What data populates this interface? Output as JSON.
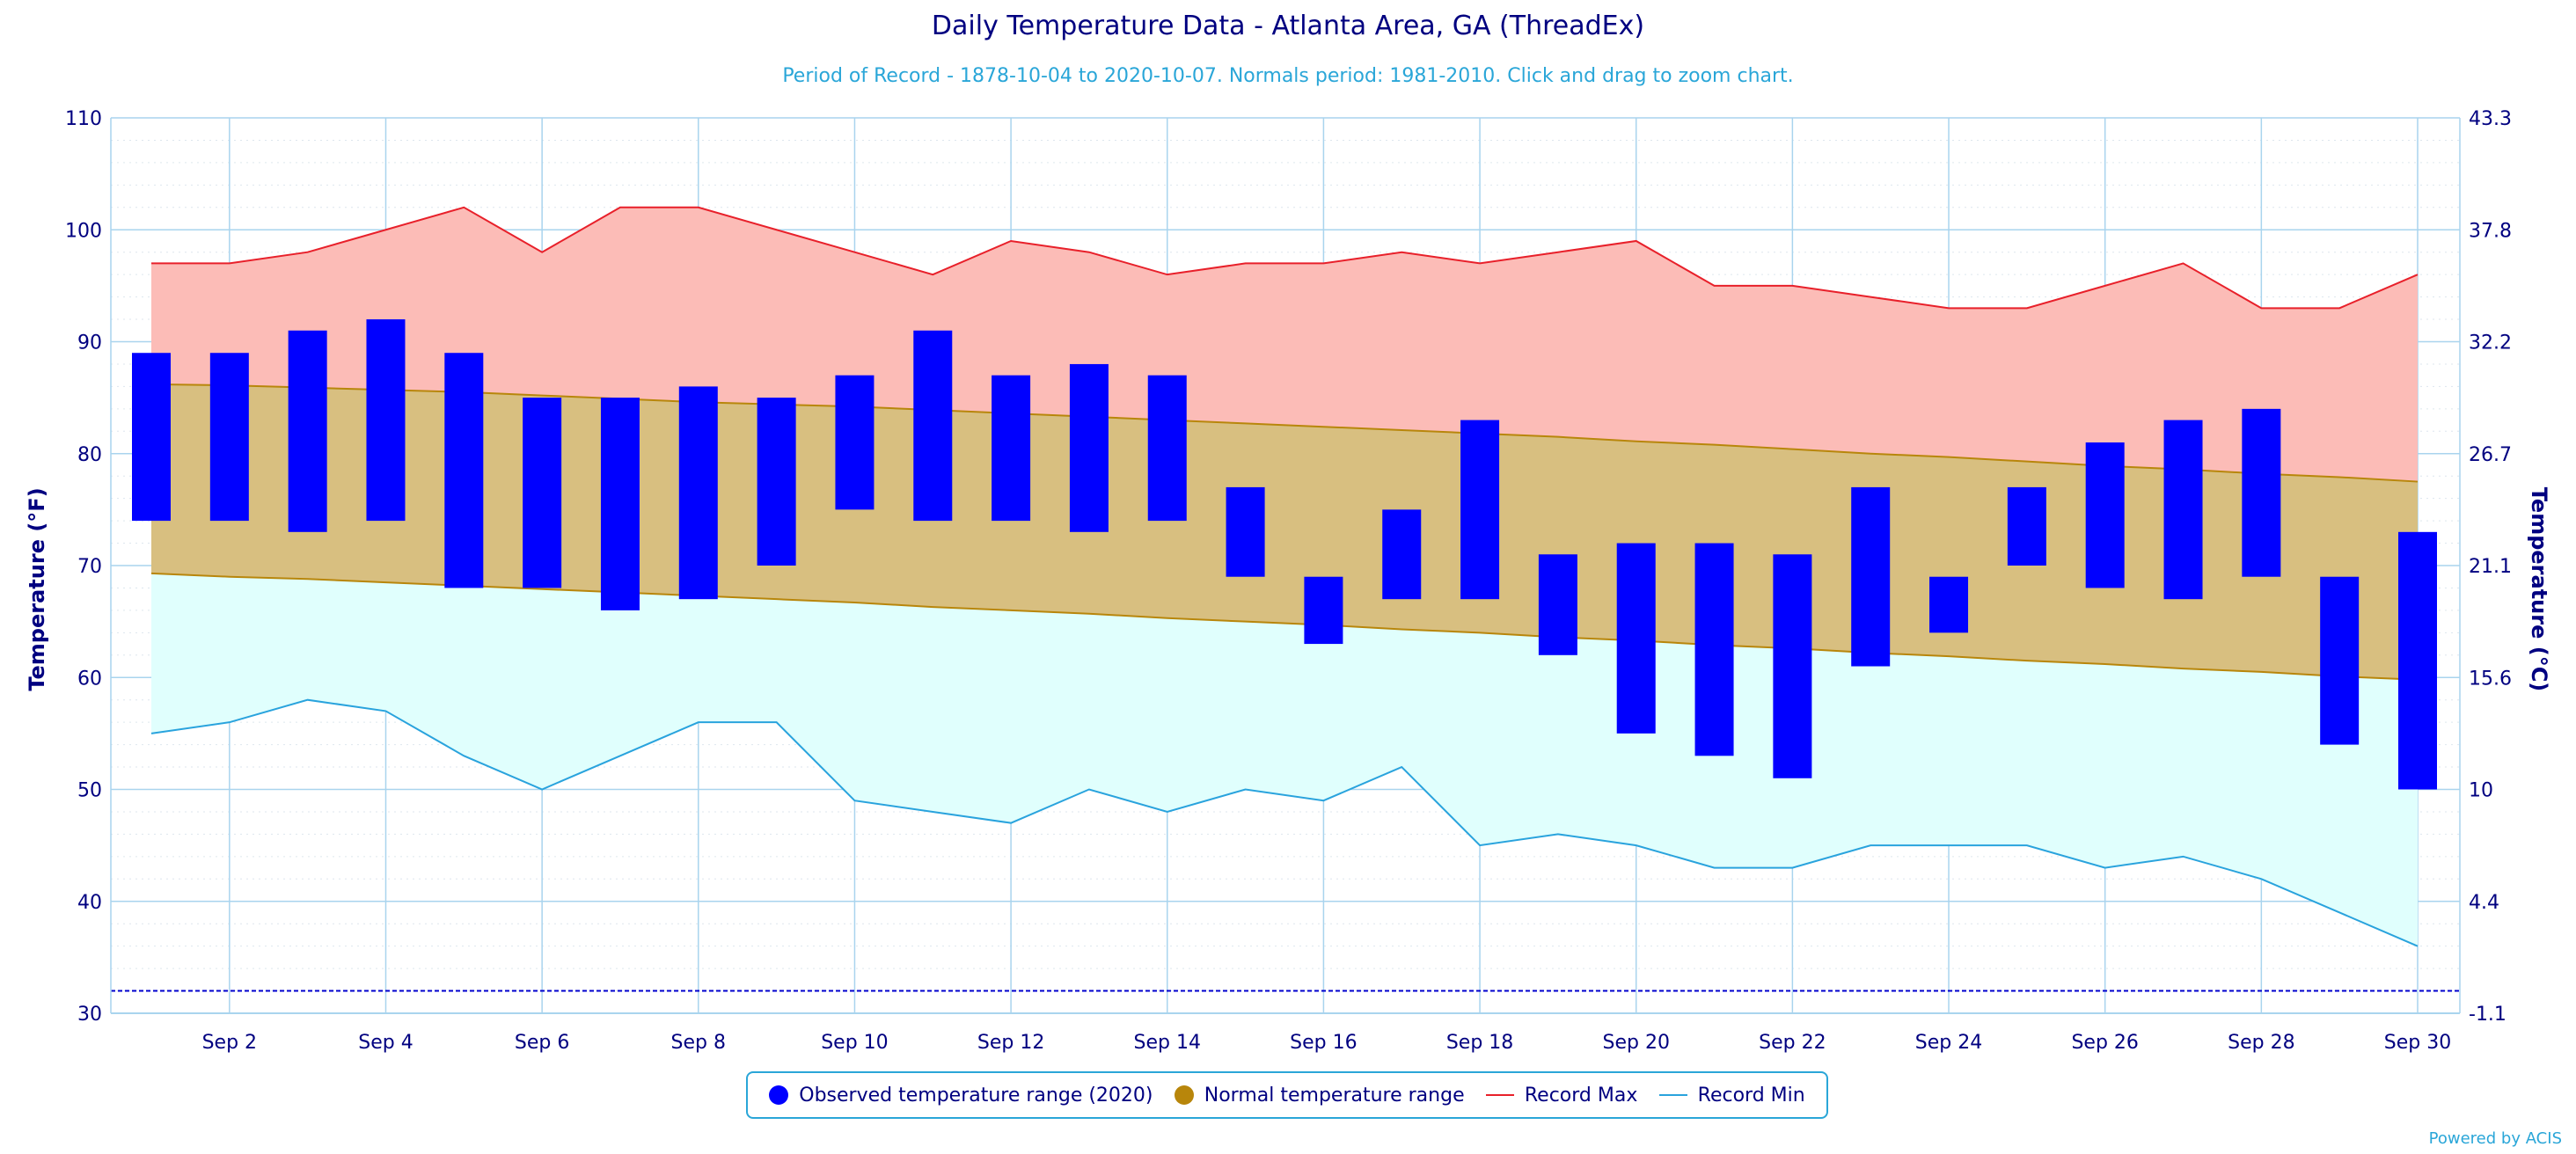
{
  "title": "Daily Temperature Data - Atlanta Area, GA (ThreadEx)",
  "subtitle": "Period of Record - 1878-10-04 to 2020-10-07. Normals period: 1981-2010. Click and drag to zoom chart.",
  "credit": "Powered by ACIS",
  "colors": {
    "observed": "#0000ff",
    "normal_fill": "#d8bf80",
    "normal_line": "#b8860b",
    "record_max_fill": "#fcbcb7",
    "record_max_line": "#e8202a",
    "record_min_fill": "#e0fffd",
    "record_min_line": "#29a3dd",
    "axis_text": "#000080",
    "grid": "#a9d4ee",
    "freeze_line": "#0000cd"
  },
  "legend": [
    {
      "label": "Observed temperature range (2020)",
      "type": "dot",
      "color": "#0000ff"
    },
    {
      "label": "Normal temperature range",
      "type": "dot",
      "color": "#b8860b"
    },
    {
      "label": "Record Max",
      "type": "line",
      "color": "#e8202a"
    },
    {
      "label": "Record Min",
      "type": "line",
      "color": "#29a3dd"
    }
  ],
  "chart_data": {
    "type": "bar",
    "ylabel": "Temperature (°F)",
    "ylabel_right": "Temperature (°C)",
    "ylim": [
      30,
      110
    ],
    "yticks": [
      30,
      40,
      50,
      60,
      70,
      80,
      90,
      100,
      110
    ],
    "yticks_right": [
      "-1.1",
      "4.4",
      "10",
      "15.6",
      "21.1",
      "26.7",
      "32.2",
      "37.8",
      "43.3"
    ],
    "x_tick_labels": [
      "Sep 2",
      "Sep 4",
      "Sep 6",
      "Sep 8",
      "Sep 10",
      "Sep 12",
      "Sep 14",
      "Sep 16",
      "Sep 18",
      "Sep 20",
      "Sep 22",
      "Sep 24",
      "Sep 26",
      "Sep 28",
      "Sep 30"
    ],
    "days": [
      1,
      2,
      3,
      4,
      5,
      6,
      7,
      8,
      9,
      10,
      11,
      12,
      13,
      14,
      15,
      16,
      17,
      18,
      19,
      20,
      21,
      22,
      23,
      24,
      25,
      26,
      27,
      28,
      29,
      30
    ],
    "observed_low": [
      74,
      74,
      73,
      74,
      68,
      68,
      66,
      67,
      70,
      75,
      74,
      74,
      73,
      74,
      69,
      63,
      67,
      67,
      62,
      55,
      53,
      51,
      61,
      64,
      70,
      68,
      67,
      69,
      54,
      50
    ],
    "observed_high": [
      89,
      89,
      91,
      92,
      89,
      85,
      85,
      86,
      85,
      87,
      91,
      87,
      88,
      87,
      77,
      69,
      75,
      83,
      71,
      72,
      72,
      71,
      77,
      69,
      77,
      81,
      83,
      84,
      69,
      73
    ],
    "normal_high": [
      86.2,
      86.1,
      85.9,
      85.7,
      85.5,
      85.2,
      84.9,
      84.6,
      84.4,
      84.2,
      83.9,
      83.6,
      83.3,
      83.0,
      82.7,
      82.4,
      82.1,
      81.8,
      81.5,
      81.1,
      80.8,
      80.4,
      80.0,
      79.7,
      79.3,
      78.9,
      78.6,
      78.2,
      77.9,
      77.5
    ],
    "normal_low": [
      69.3,
      69.0,
      68.8,
      68.5,
      68.2,
      67.9,
      67.6,
      67.3,
      67.0,
      66.7,
      66.3,
      66.0,
      65.7,
      65.3,
      65.0,
      64.7,
      64.3,
      64.0,
      63.6,
      63.3,
      62.9,
      62.6,
      62.2,
      61.9,
      61.5,
      61.2,
      60.8,
      60.5,
      60.1,
      59.8
    ],
    "record_max": [
      97,
      97,
      98,
      100,
      102,
      98,
      102,
      102,
      100,
      98,
      96,
      99,
      98,
      96,
      97,
      97,
      98,
      97,
      98,
      99,
      95,
      95,
      94,
      93,
      93,
      95,
      97,
      93,
      93,
      96
    ],
    "record_min": [
      55,
      56,
      58,
      57,
      53,
      50,
      53,
      56,
      56,
      49,
      48,
      47,
      50,
      48,
      50,
      49,
      52,
      45,
      46,
      45,
      43,
      43,
      45,
      45,
      45,
      43,
      44,
      42,
      39,
      36
    ],
    "freeze_line": 32,
    "series": [
      {
        "name": "Observed temperature range (2020)"
      },
      {
        "name": "Normal temperature range"
      },
      {
        "name": "Record Max"
      },
      {
        "name": "Record Min"
      }
    ],
    "grid": true,
    "legend_position": "bottom"
  }
}
